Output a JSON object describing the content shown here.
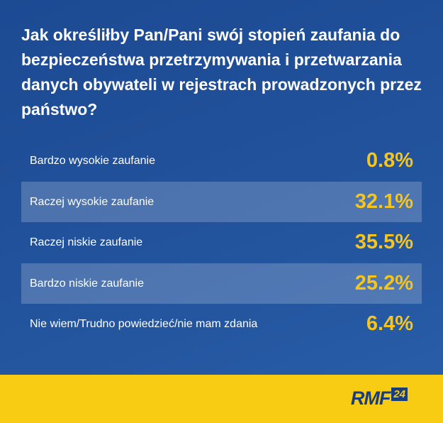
{
  "title": "Jak określiłby Pan/Pani swój stopień zaufania do bezpieczeństwa przetrzymywania i przetwarzania danych obywateli w rejestrach prowadzonych przez państwo?",
  "table": {
    "rows": [
      [
        "Bardzo wysokie zaufanie",
        "0.8%"
      ],
      [
        "Raczej wysokie zaufanie",
        "32.1%"
      ],
      [
        "Raczej niskie zaufanie",
        "35.5%"
      ],
      [
        "Bardzo niskie zaufanie",
        "25.2%"
      ],
      [
        "Nie wiem/Trudno powiedzieć/nie mam zdania",
        "6.4%"
      ]
    ]
  },
  "footer": {
    "logo": "RMF",
    "logo_badge": "24"
  }
}
